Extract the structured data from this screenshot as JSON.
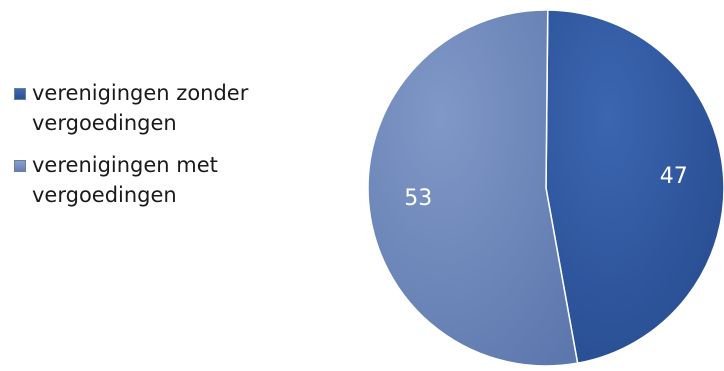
{
  "chart_data": {
    "type": "pie",
    "categories": [
      "verenigingen zonder vergoedingen",
      "verenigingen met vergoedingen"
    ],
    "values": [
      47,
      53
    ],
    "data_labels": [
      "47",
      "53"
    ],
    "colors": [
      "#2d58a3",
      "#6f89be"
    ],
    "legend": {
      "placement": "left",
      "entries": [
        "verenigingen zonder vergoedingen",
        "verenigingen met vergoedingen"
      ]
    }
  }
}
